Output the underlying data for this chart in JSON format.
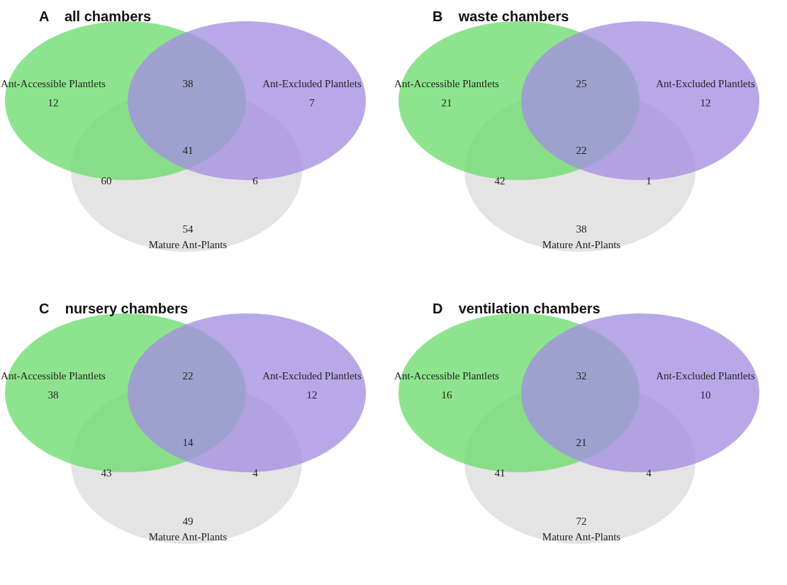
{
  "chart_data": [
    {
      "type": "other",
      "title": "A    all chambers",
      "data_labels": true,
      "categories": [
        "Ant-Accessible Plantlets",
        "Ant-Excluded Plantlets",
        "Mature Ant-Plants"
      ],
      "colors": [
        "#6edc6e",
        "#a48fe2",
        "#dcdcdc"
      ],
      "values": [
        12,
        7,
        54
      ],
      "annotations": [
        "38",
        "60",
        "41",
        "6"
      ]
    },
    {
      "type": "other",
      "title": "B    waste chambers",
      "data_labels": true,
      "categories": [
        "Ant-Accessible Plantlets",
        "Ant-Excluded Plantlets",
        "Mature Ant-Plants"
      ],
      "colors": [
        "#6edc6e",
        "#a48fe2",
        "#dcdcdc"
      ],
      "values": [
        21,
        12,
        38
      ],
      "annotations": [
        "25",
        "42",
        "22",
        "1"
      ]
    },
    {
      "type": "other",
      "title": "C    nursery chambers",
      "data_labels": true,
      "categories": [
        "Ant-Accessible Plantlets",
        "Ant-Excluded Plantlets",
        "Mature Ant-Plants"
      ],
      "colors": [
        "#6edc6e",
        "#a48fe2",
        "#dcdcdc"
      ],
      "values": [
        38,
        12,
        49
      ],
      "annotations": [
        "22",
        "43",
        "14",
        "4"
      ]
    },
    {
      "type": "other",
      "title": "D    ventilation chambers",
      "data_labels": true,
      "categories": [
        "Ant-Accessible Plantlets",
        "Ant-Excluded Plantlets",
        "Mature Ant-Plants"
      ],
      "colors": [
        "#6edc6e",
        "#a48fe2",
        "#dcdcdc"
      ],
      "values": [
        16,
        10,
        72
      ],
      "annotations": [
        "32",
        "41",
        "21",
        "4"
      ]
    }
  ]
}
